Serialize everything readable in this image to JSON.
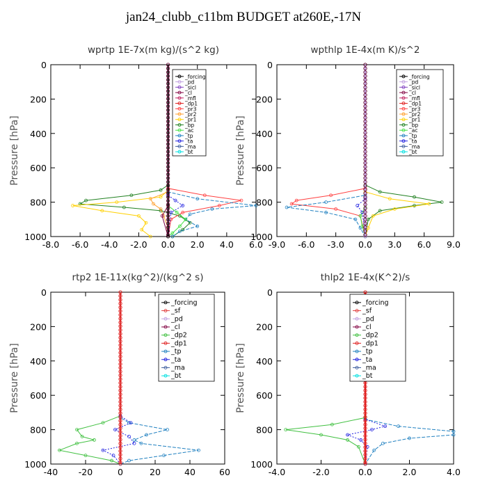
{
  "title": "jan24_clubb_c11bm  BUDGET at260E,-17N",
  "colors": {
    "forcing": "#000000",
    "pd": "#c0a0e0",
    "sicl": "#8040c0",
    "cl": "#800040",
    "mfl": "#c02060",
    "dp1": "#e02020",
    "pr3": "#ff4040",
    "pr2": "#ffa030",
    "pr1": "#ffd000",
    "bp": "#208020",
    "ac": "#40e040",
    "tp": "#2080c0",
    "ta": "#2020e0",
    "ma": "#4060a0",
    "bt": "#00e0e0",
    "sf": "#e04040",
    "dp2": "#40c040"
  },
  "chart_data": [
    {
      "type": "line",
      "title": "wprtp  1E-7x(m kg)/(s^2 kg)",
      "ylabel": "Pressure [hPa]",
      "xlim": [
        -8,
        6
      ],
      "ylim": [
        1000,
        0
      ],
      "xticks": [
        "-8.0",
        "-6.0",
        "-4.0",
        "-2.0",
        "0.0",
        "2.0",
        "4.0",
        "6.0"
      ],
      "xtick_values": [
        -8,
        -6,
        -4,
        -2,
        0,
        2,
        4,
        6
      ],
      "yticks": [
        "0",
        "200",
        "400",
        "600",
        "800",
        "1000"
      ],
      "ytick_values": [
        0,
        200,
        400,
        600,
        800,
        1000
      ],
      "legend": [
        "_forcing",
        "_pd",
        "_sicl",
        "_cl",
        "_mfl",
        "_dp1",
        "_pr3",
        "_pr2",
        "_pr1",
        "_bp",
        "_ac",
        "_tp",
        "_ta",
        "_ma",
        "_bt"
      ],
      "series": [
        {
          "name": "_bp",
          "color": "#208020",
          "y": [
            0,
            700,
            730,
            760,
            790,
            810,
            830,
            850,
            880,
            920,
            960,
            1000
          ],
          "x": [
            0,
            0,
            -0.5,
            -2.5,
            -5.6,
            -6.0,
            -3.0,
            -0.5,
            0.8,
            1.5,
            1.0,
            0.3
          ]
        },
        {
          "name": "_pr1",
          "color": "#ffd000",
          "y": [
            0,
            730,
            770,
            800,
            820,
            850,
            880,
            920,
            960,
            1000
          ],
          "x": [
            0,
            0,
            -0.5,
            -3.5,
            -6.5,
            -4.5,
            -2.0,
            -1.5,
            -1.8,
            -1.2
          ]
        },
        {
          "name": "_pr2",
          "color": "#ffa030",
          "y": [
            0,
            740,
            780,
            810,
            840,
            880,
            950,
            1000
          ],
          "x": [
            0,
            0,
            -1.2,
            -1.0,
            -0.5,
            -0.3,
            0,
            0
          ]
        },
        {
          "name": "_pr3",
          "color": "#ff4040",
          "y": [
            0,
            720,
            760,
            790,
            820,
            860,
            900,
            1000
          ],
          "x": [
            0,
            0,
            2.5,
            5.0,
            3.5,
            1.0,
            0.2,
            0
          ]
        },
        {
          "name": "_ta",
          "color": "#2020e0",
          "y": [
            0,
            760,
            790,
            820,
            860,
            1000
          ],
          "x": [
            0,
            0,
            0.5,
            1.0,
            0.2,
            0
          ]
        },
        {
          "name": "_tp",
          "color": "#2080c0",
          "y": [
            0,
            740,
            780,
            820,
            840,
            870,
            900,
            940,
            970,
            1000
          ],
          "x": [
            0,
            0,
            2.0,
            6.0,
            3.0,
            1.5,
            1.2,
            2.0,
            0.8,
            0.3
          ]
        },
        {
          "name": "_ac",
          "color": "#40e040",
          "y": [
            0,
            820,
            860,
            900,
            940,
            980,
            1000
          ],
          "x": [
            0,
            0,
            0.6,
            1.2,
            0.8,
            0.3,
            0
          ]
        },
        {
          "name": "_cl",
          "color": "#800040",
          "y": [
            0,
            820,
            880,
            1000
          ],
          "x": [
            0,
            0,
            -0.4,
            0
          ]
        },
        {
          "name": "_forcing",
          "color": "#000000",
          "y": [
            0,
            1000
          ],
          "x": [
            0,
            0
          ]
        }
      ]
    },
    {
      "type": "line",
      "title": "wpthlp  1E-4x(m K)/s^2",
      "ylabel": "Pressure [hPa]",
      "xlim": [
        -9,
        9
      ],
      "ylim": [
        1000,
        0
      ],
      "xticks": [
        "-9.0",
        "-6.0",
        "-3.0",
        "0.0",
        "3.0",
        "6.0",
        "9.0"
      ],
      "xtick_values": [
        -9,
        -6,
        -3,
        0,
        3,
        6,
        9
      ],
      "yticks": [
        "0",
        "200",
        "400",
        "600",
        "800",
        "1000"
      ],
      "ytick_values": [
        0,
        200,
        400,
        600,
        800,
        1000
      ],
      "legend": [
        "_forcing",
        "_pd",
        "_sicl",
        "_cl",
        "_mfl",
        "_dp1",
        "_pr3",
        "_pr2",
        "_pr1",
        "_bp",
        "_ac",
        "_tp",
        "_ta",
        "_ma",
        "_bt"
      ],
      "series": [
        {
          "name": "_bp",
          "color": "#208020",
          "y": [
            0,
            700,
            740,
            770,
            800,
            820,
            850,
            900,
            1000
          ],
          "x": [
            0,
            0,
            1.5,
            5.0,
            7.8,
            5.0,
            1.5,
            0.3,
            0
          ]
        },
        {
          "name": "_pr1",
          "color": "#ffd000",
          "y": [
            0,
            740,
            780,
            810,
            840,
            880,
            950,
            1000
          ],
          "x": [
            0,
            0,
            2.5,
            6.5,
            3.0,
            0.8,
            0.3,
            0
          ]
        },
        {
          "name": "_pr3",
          "color": "#ff4040",
          "y": [
            0,
            720,
            760,
            790,
            810,
            840,
            880,
            1000
          ],
          "x": [
            0,
            0,
            -3.5,
            -7.0,
            -7.5,
            -3.0,
            -0.5,
            0
          ]
        },
        {
          "name": "_tp",
          "color": "#2080c0",
          "y": [
            0,
            760,
            800,
            830,
            860,
            900,
            950,
            1000
          ],
          "x": [
            0,
            0,
            -4.0,
            -8.0,
            -4.0,
            -1.0,
            -0.5,
            0
          ]
        },
        {
          "name": "_ac",
          "color": "#40e040",
          "y": [
            0,
            830,
            880,
            940,
            1000
          ],
          "x": [
            0,
            0,
            -0.5,
            -0.3,
            0
          ]
        },
        {
          "name": "_ta",
          "color": "#2020e0",
          "y": [
            0,
            780,
            820,
            860,
            1000
          ],
          "x": [
            0,
            0,
            -0.8,
            -0.3,
            0
          ]
        },
        {
          "name": "_pd",
          "color": "#c0a0e0",
          "y": [
            0,
            1000
          ],
          "x": [
            0,
            0
          ]
        }
      ]
    },
    {
      "type": "line",
      "title": "rtp2  1E-11x(kg^2)/(kg^2 s)",
      "ylabel": "Pressure [hPa]",
      "xlim": [
        -40,
        60
      ],
      "ylim": [
        1000,
        0
      ],
      "xticks": [
        "-40",
        "-20",
        "0",
        "20",
        "40",
        "60"
      ],
      "xtick_values": [
        -40,
        -20,
        0,
        20,
        40,
        60
      ],
      "yticks": [
        "0",
        "200",
        "400",
        "600",
        "800",
        "1000"
      ],
      "ytick_values": [
        0,
        200,
        400,
        600,
        800,
        1000
      ],
      "legend": [
        "_forcing",
        "_sf",
        "_pd",
        "_cl",
        "_dp2",
        "_dp1",
        "_tp",
        "_ta",
        "_ma",
        "_bt"
      ],
      "series": [
        {
          "name": "_dp2",
          "color": "#40c040",
          "y": [
            0,
            720,
            760,
            800,
            840,
            860,
            880,
            920,
            950,
            980,
            1000
          ],
          "x": [
            0,
            0,
            -10,
            -25,
            -22,
            -15,
            -25,
            -35,
            -20,
            -5,
            0
          ]
        },
        {
          "name": "_tp",
          "color": "#2080c0",
          "y": [
            0,
            730,
            760,
            800,
            830,
            860,
            880,
            920,
            950,
            980,
            1000
          ],
          "x": [
            0,
            0,
            5,
            27,
            15,
            8,
            12,
            45,
            25,
            5,
            0
          ]
        },
        {
          "name": "_ta",
          "color": "#2020e0",
          "y": [
            0,
            720,
            760,
            800,
            840,
            880,
            920,
            950,
            1000
          ],
          "x": [
            0,
            0,
            6,
            -3,
            5,
            8,
            -10,
            -4,
            0
          ]
        },
        {
          "name": "_sf",
          "color": "#e04040",
          "y": [
            0,
            1000
          ],
          "x": [
            0,
            0
          ]
        }
      ]
    },
    {
      "type": "line",
      "title": "thlp2  1E-4x(K^2)/s",
      "ylabel": "Pressure [hPa]",
      "xlim": [
        -4,
        4
      ],
      "ylim": [
        1000,
        0
      ],
      "xticks": [
        "-4.0",
        "-2.0",
        "0.0",
        "2.0",
        "4.0"
      ],
      "xtick_values": [
        -4,
        -2,
        0,
        2,
        4
      ],
      "yticks": [
        "0",
        "200",
        "400",
        "600",
        "800",
        "1000"
      ],
      "ytick_values": [
        0,
        200,
        400,
        600,
        800,
        1000
      ],
      "legend": [
        "_forcing",
        "_sf",
        "_pd",
        "_cl",
        "_dp2",
        "_dp1",
        "_tp",
        "_ta",
        "_ma",
        "_bt"
      ],
      "series": [
        {
          "name": "_dp2",
          "color": "#40c040",
          "y": [
            0,
            730,
            770,
            800,
            830,
            860,
            900,
            1000
          ],
          "x": [
            0,
            0,
            -1.5,
            -3.6,
            -2.0,
            -0.8,
            -0.3,
            0
          ]
        },
        {
          "name": "_tp",
          "color": "#2080c0",
          "y": [
            0,
            740,
            780,
            810,
            830,
            850,
            880,
            920,
            1000
          ],
          "x": [
            0,
            0,
            1.5,
            4.0,
            4.0,
            2.0,
            0.8,
            0.4,
            0
          ]
        },
        {
          "name": "_ta",
          "color": "#2020e0",
          "y": [
            0,
            740,
            780,
            800,
            830,
            860,
            900,
            1000
          ],
          "x": [
            0,
            0,
            0.9,
            0.3,
            -0.8,
            -0.2,
            0.1,
            0
          ]
        },
        {
          "name": "_forcing",
          "color": "#e02020",
          "y": [
            0,
            1000
          ],
          "x": [
            0,
            0
          ]
        }
      ]
    }
  ]
}
